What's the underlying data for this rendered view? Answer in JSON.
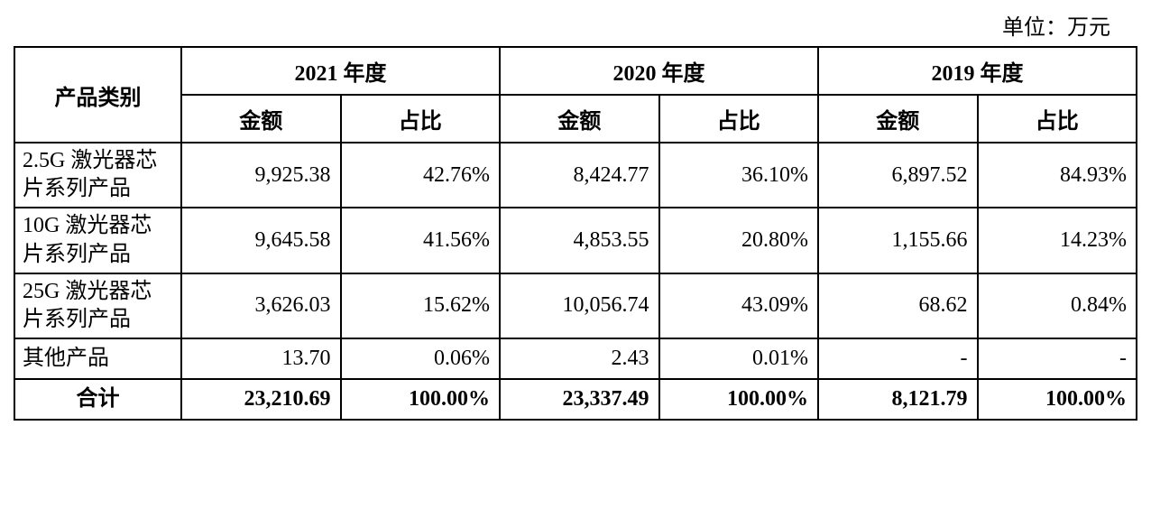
{
  "unit_label": "单位：万元",
  "table": {
    "category_header": "产品类别",
    "years": [
      "2021 年度",
      "2020 年度",
      "2019 年度"
    ],
    "subheaders": {
      "amount": "金额",
      "percent": "占比"
    },
    "rows": [
      {
        "label": "2.5G 激光器芯片系列产品",
        "y2021_amt": "9,925.38",
        "y2021_pct": "42.76%",
        "y2020_amt": "8,424.77",
        "y2020_pct": "36.10%",
        "y2019_amt": "6,897.52",
        "y2019_pct": "84.93%"
      },
      {
        "label": "10G 激光器芯片系列产品",
        "y2021_amt": "9,645.58",
        "y2021_pct": "41.56%",
        "y2020_amt": "4,853.55",
        "y2020_pct": "20.80%",
        "y2019_amt": "1,155.66",
        "y2019_pct": "14.23%"
      },
      {
        "label": "25G 激光器芯片系列产品",
        "y2021_amt": "3,626.03",
        "y2021_pct": "15.62%",
        "y2020_amt": "10,056.74",
        "y2020_pct": "43.09%",
        "y2019_amt": "68.62",
        "y2019_pct": "0.84%"
      },
      {
        "label": "其他产品",
        "y2021_amt": "13.70",
        "y2021_pct": "0.06%",
        "y2020_amt": "2.43",
        "y2020_pct": "0.01%",
        "y2019_amt": "-",
        "y2019_pct": "-"
      }
    ],
    "total": {
      "label": "合计",
      "y2021_amt": "23,210.69",
      "y2021_pct": "100.00%",
      "y2020_amt": "23,337.49",
      "y2020_pct": "100.00%",
      "y2019_amt": "8,121.79",
      "y2019_pct": "100.00%"
    }
  },
  "style": {
    "background_color": "#ffffff",
    "border_color": "#000000",
    "text_color": "#000000",
    "font_family": "SimSun",
    "font_size_pt": 18,
    "header_font_weight": "bold",
    "total_font_weight": "bold",
    "cell_align_label": "left",
    "cell_align_number": "right",
    "header_align": "center"
  }
}
